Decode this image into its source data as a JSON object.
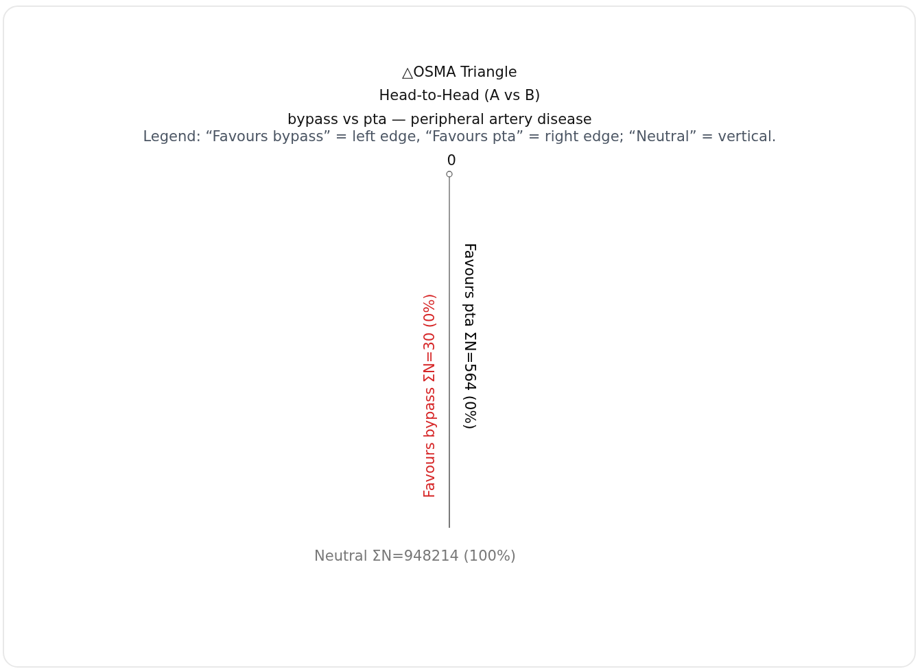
{
  "chart_data": {
    "type": "other",
    "title": "△OSMA Triangle",
    "subtitle": "Head-to-Head (A vs B)",
    "annotations": [
      "bypass vs pta — peripheral artery disease",
      "Legend: “Favours bypass” = left edge, “Favours pta” = right edge; “Neutral” = vertical.",
      "0"
    ],
    "categories": [
      "Favours bypass",
      "Favours pta",
      "Neutral"
    ],
    "values": [
      30,
      564,
      948214
    ],
    "value_labels": [
      "ΣN=30 (0%)",
      "ΣN=564 (0%)",
      "ΣN=948214 (100%)"
    ],
    "colors": [
      "#d62728",
      "#000000",
      "#777777"
    ]
  }
}
